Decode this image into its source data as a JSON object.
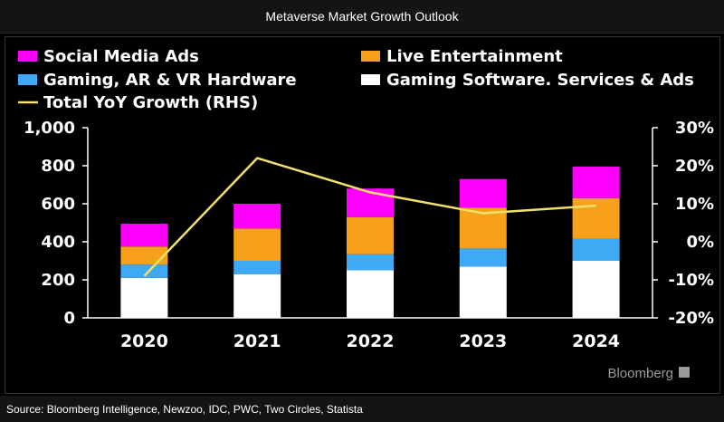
{
  "header": {
    "title": "Metaverse Market Growth Outlook"
  },
  "footer": {
    "source": "Source: Bloomberg Intelligence, Newzoo, IDC, PWC, Two Circles, Statista"
  },
  "branding": {
    "label": "Bloomberg"
  },
  "colors": {
    "gaming_software": "#ffffff",
    "hardware": "#3fa9f5",
    "live_entertainment": "#f7a11a",
    "social_media_ads": "#ff00ff",
    "yoy_line": "#f2e06a",
    "axis": "#ffffff",
    "background": "#000000"
  },
  "chart_data": {
    "type": "bar",
    "stacked": true,
    "title": "",
    "xlabel": "",
    "ylabel": "",
    "categories": [
      "2020",
      "2021",
      "2022",
      "2023",
      "2024"
    ],
    "series": [
      {
        "key": "gaming_software",
        "name": "Gaming Software. Services & Ads",
        "type": "bar",
        "axis": "left",
        "values": [
          210,
          230,
          250,
          270,
          300
        ]
      },
      {
        "key": "hardware",
        "name": "Gaming, AR & VR Hardware",
        "type": "bar",
        "axis": "left",
        "values": [
          70,
          70,
          85,
          95,
          115
        ]
      },
      {
        "key": "live_entertainment",
        "name": "Live Entertainment",
        "type": "bar",
        "axis": "left",
        "values": [
          95,
          170,
          195,
          215,
          215
        ]
      },
      {
        "key": "social_media_ads",
        "name": "Social Media Ads",
        "type": "bar",
        "axis": "left",
        "values": [
          120,
          130,
          150,
          150,
          165
        ]
      },
      {
        "key": "yoy_line",
        "name": "Total YoY Growth (RHS)",
        "type": "line",
        "axis": "right",
        "values": [
          -9,
          22,
          13,
          7.5,
          9.5
        ]
      }
    ],
    "ylim": [
      0,
      1000
    ],
    "yticks": [
      0,
      200,
      400,
      600,
      800,
      1000
    ],
    "ytick_labels": [
      "0",
      "200",
      "400",
      "600",
      "800",
      "1,000"
    ],
    "y2lim": [
      -20,
      30
    ],
    "y2ticks": [
      -20,
      -10,
      0,
      10,
      20,
      30
    ],
    "y2tick_labels": [
      "-20%",
      "-10%",
      "0%",
      "10%",
      "20%",
      "30%"
    ],
    "legend": {
      "placement": "top",
      "entries": [
        {
          "label": "Social Media Ads",
          "key": "social_media_ads",
          "kind": "box"
        },
        {
          "label": "Live Entertainment",
          "key": "live_entertainment",
          "kind": "box"
        },
        {
          "label": "Gaming, AR & VR Hardware",
          "key": "hardware",
          "kind": "box"
        },
        {
          "label": "Gaming Software. Services & Ads",
          "key": "gaming_software",
          "kind": "box"
        },
        {
          "label": "Total YoY Growth (RHS)",
          "key": "yoy_line",
          "kind": "line"
        }
      ]
    },
    "grid": false
  }
}
